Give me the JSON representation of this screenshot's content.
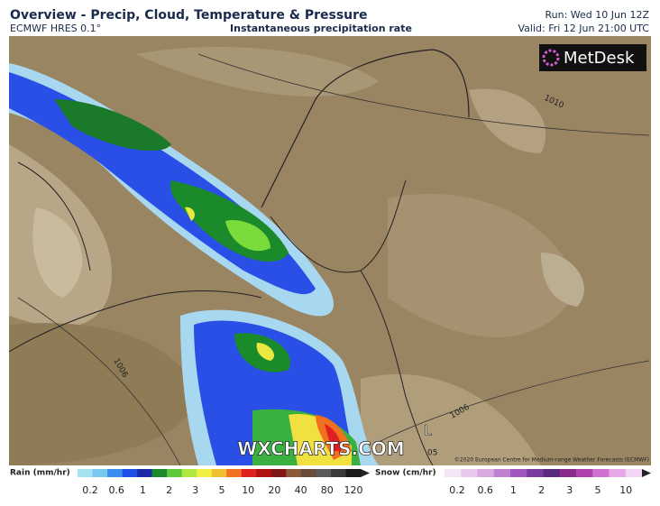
{
  "header": {
    "title": "Overview - Precip, Cloud, Temperature & Pressure",
    "model": "ECMWF HRES 0.1°",
    "parameter": "Instantaneous precipitation rate",
    "run": "Run: Wed 10 Jun 12Z",
    "valid": "Valid: Fri 12 Jun 21:00 UTC"
  },
  "map": {
    "brand": "MetDesk",
    "watermark": "WXCHARTS.COM",
    "copyright": "©2020 European Centre for Medium-range Weather Forecasts (ECMWF)",
    "isobar_labels": [
      "1010",
      "1006",
      "1006",
      "05"
    ],
    "low_marker": "L"
  },
  "legend": {
    "rain_title": "Rain (mm/hr)",
    "rain_labels": [
      0.2,
      0.6,
      1,
      2,
      3,
      5,
      10,
      20,
      40,
      80,
      120
    ],
    "snow_title": "Snow (cm/hr)",
    "snow_labels": [
      0.2,
      0.6,
      1,
      2,
      3,
      5,
      10
    ]
  }
}
